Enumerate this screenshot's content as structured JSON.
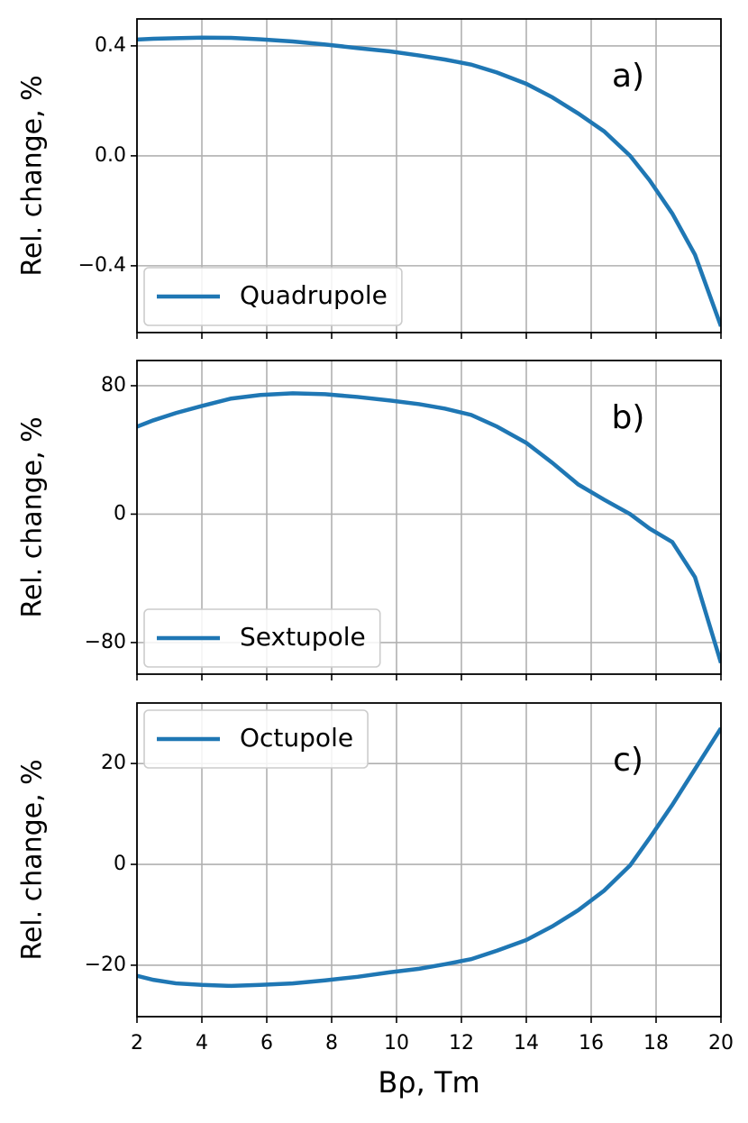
{
  "chart_data": [
    {
      "type": "line",
      "ylabel": "Rel. change, %",
      "annotation": "a)",
      "legend": "lower left",
      "grid": true,
      "x": [
        2,
        2.5,
        3.2,
        4,
        4.9,
        5.8,
        6.8,
        7.8,
        8.8,
        9.8,
        10.7,
        11.5,
        12.3,
        13.1,
        14,
        14.8,
        15.6,
        16.4,
        17.2,
        17.8,
        18.5,
        19.2,
        20
      ],
      "series": [
        {
          "name": "Quadrupole",
          "color": "#1f77b4",
          "values": [
            0.423,
            0.426,
            0.428,
            0.43,
            0.429,
            0.424,
            0.416,
            0.405,
            0.392,
            0.38,
            0.365,
            0.35,
            0.332,
            0.303,
            0.262,
            0.213,
            0.154,
            0.089,
            0.0,
            -0.089,
            -0.21,
            -0.36,
            -0.62
          ]
        }
      ],
      "xlim": [
        2,
        20
      ],
      "xticks": [
        2,
        4,
        6,
        8,
        10,
        12,
        14,
        16,
        18,
        20
      ],
      "ylim": [
        -0.643,
        0.498
      ],
      "yticks": [
        {
          "value": -0.4,
          "label": "−0.4"
        },
        {
          "value": 0,
          "label": "0.0"
        },
        0.4
      ]
    },
    {
      "type": "line",
      "ylabel": "Rel. change, %",
      "annotation": "b)",
      "legend": "lower left",
      "grid": true,
      "x": [
        2,
        2.5,
        3.2,
        4,
        4.9,
        5.8,
        6.8,
        7.8,
        8.8,
        9.8,
        10.7,
        11.5,
        12.3,
        13.1,
        14,
        14.8,
        15.6,
        16.4,
        17.2,
        17.8,
        18.5,
        19.2,
        20
      ],
      "series": [
        {
          "name": "Sextupole",
          "color": "#1f77b4",
          "values": [
            54.5,
            58.4,
            63,
            67.4,
            72,
            74.2,
            75.3,
            74.7,
            73,
            70.8,
            68.5,
            65.7,
            61.8,
            54.5,
            44.4,
            32,
            18.5,
            9,
            0,
            -9,
            -17.4,
            -39.3,
            -92.7
          ]
        }
      ],
      "xlim": [
        2,
        20
      ],
      "xticks": [
        2,
        4,
        6,
        8,
        10,
        12,
        14,
        16,
        18,
        20
      ],
      "ylim": [
        -99.7,
        95.7
      ],
      "yticks": [
        {
          "value": -80,
          "label": "−80"
        },
        0,
        80
      ]
    },
    {
      "type": "line",
      "ylabel": "Rel. change, %",
      "annotation": "c)",
      "legend": "upper left",
      "grid": true,
      "xlabel": "Bρ, Tm",
      "x": [
        2,
        2.5,
        3.2,
        4,
        4.9,
        5.8,
        6.8,
        7.8,
        8.8,
        9.8,
        10.7,
        11.5,
        12.3,
        13.1,
        14,
        14.8,
        15.6,
        16.4,
        17.2,
        17.8,
        18.5,
        19.2,
        20
      ],
      "series": [
        {
          "name": "Octupole",
          "color": "#1f77b4",
          "values": [
            -22.1,
            -22.9,
            -23.6,
            -23.9,
            -24.1,
            -23.9,
            -23.6,
            -23,
            -22.3,
            -21.4,
            -20.7,
            -19.8,
            -18.8,
            -17.1,
            -15,
            -12.3,
            -9.1,
            -5.2,
            -0.2,
            5.2,
            11.8,
            18.9,
            27
          ]
        }
      ],
      "xlim": [
        2,
        20
      ],
      "xticks": [
        2,
        4,
        6,
        8,
        10,
        12,
        14,
        16,
        18,
        20
      ],
      "ylim": [
        -30.2,
        32
      ],
      "yticks": [
        {
          "value": -20,
          "label": "−20"
        },
        0,
        20
      ]
    }
  ]
}
